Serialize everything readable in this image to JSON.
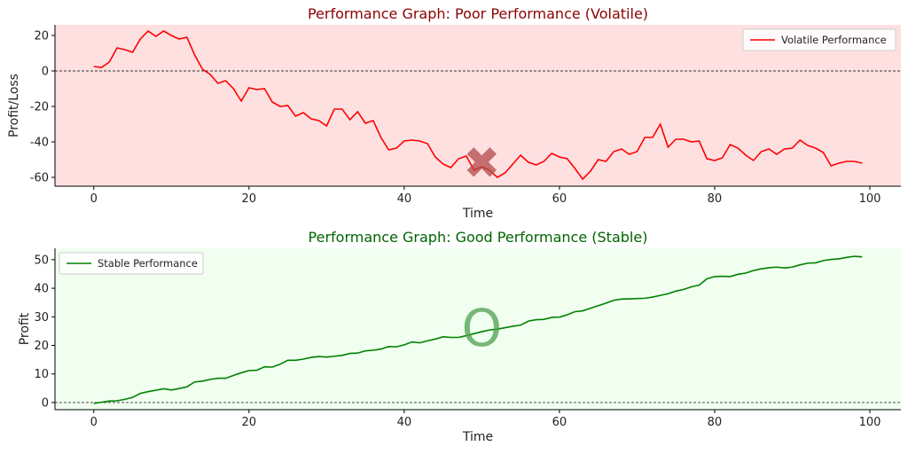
{
  "chart_data": [
    {
      "type": "line",
      "title": "Performance Graph: Poor Performance (Volatile)",
      "title_color": "#8b0000",
      "xlabel": "Time",
      "ylabel": "Profit/Loss",
      "xlim": [
        -5,
        104
      ],
      "ylim": [
        -65,
        26
      ],
      "xticks": [
        0,
        20,
        40,
        60,
        80,
        100
      ],
      "yticks": [
        -60,
        -40,
        -20,
        0,
        20
      ],
      "background": "#ffe0e0",
      "grid": false,
      "legend": "top-right",
      "reference_line": {
        "y": 0,
        "style": "dashed",
        "color": "#333333"
      },
      "marker": {
        "symbol": "✖",
        "x": 50,
        "y": -52,
        "color": "#b24a4a"
      },
      "series": [
        {
          "name": "Volatile Performance",
          "color": "#ff0000",
          "x": [
            0,
            1,
            2,
            3,
            4,
            5,
            6,
            7,
            8,
            9,
            10,
            11,
            12,
            13,
            14,
            15,
            16,
            17,
            18,
            19,
            20,
            21,
            22,
            23,
            24,
            25,
            26,
            27,
            28,
            29,
            30,
            31,
            32,
            33,
            34,
            35,
            36,
            37,
            38,
            39,
            40,
            41,
            42,
            43,
            44,
            45,
            46,
            47,
            48,
            49,
            50,
            51,
            52,
            53,
            54,
            55,
            56,
            57,
            58,
            59,
            60,
            61,
            62,
            63,
            64,
            65,
            66,
            67,
            68,
            69,
            70,
            71,
            72,
            73,
            74,
            75,
            76,
            77,
            78,
            79,
            80,
            81,
            82,
            83,
            84,
            85,
            86,
            87,
            88,
            89,
            90,
            91,
            92,
            93,
            94,
            95,
            96,
            97,
            98,
            99
          ],
          "values": [
            2.5,
            2,
            5,
            13,
            12,
            10.5,
            18,
            22.5,
            19.5,
            22.5,
            20,
            18,
            19,
            9,
            1,
            -2,
            -7,
            -5.5,
            -10,
            -17,
            -9.5,
            -10.5,
            -10,
            -17.5,
            -20,
            -19.5,
            -25.5,
            -23.5,
            -27,
            -28,
            -31,
            -21.5,
            -21.5,
            -27.5,
            -23,
            -29.5,
            -28,
            -37.5,
            -44.5,
            -43.5,
            -39.5,
            -39,
            -39.5,
            -41,
            -48.5,
            -52.5,
            -54.5,
            -49.5,
            -48,
            -56,
            -54,
            -56,
            -60,
            -57.5,
            -52.5,
            -47.5,
            -51.5,
            -53,
            -51,
            -46.5,
            -48.5,
            -49.5,
            -55,
            -61,
            -56.5,
            -50,
            -51,
            -45.5,
            -44,
            -47,
            -45.5,
            -37.5,
            -37.5,
            -30,
            -43,
            -38.5,
            -38.5,
            -40,
            -39.5,
            -49.5,
            -50.5,
            -49,
            -41.5,
            -43.5,
            -47.5,
            -50.5,
            -45.5,
            -44,
            -47,
            -44,
            -43.5,
            -39,
            -42,
            -43.5,
            -46,
            -53.5,
            -52,
            -51,
            -51,
            -52
          ]
        }
      ]
    },
    {
      "type": "line",
      "title": "Performance Graph: Good Performance (Stable)",
      "title_color": "#006400",
      "xlabel": "Time",
      "ylabel": "Profit",
      "xlim": [
        -5,
        104
      ],
      "ylim": [
        -2.5,
        54
      ],
      "xticks": [
        0,
        20,
        40,
        60,
        80,
        100
      ],
      "yticks": [
        0,
        10,
        20,
        30,
        40,
        50
      ],
      "background": "#f0fff0",
      "grid": false,
      "legend": "top-left",
      "reference_line": {
        "y": 0,
        "style": "dashed",
        "color": "#333333"
      },
      "marker": {
        "symbol": "O",
        "x": 50,
        "y": 26,
        "color": "#4f9f4f"
      },
      "series": [
        {
          "name": "Stable Performance",
          "color": "#008000",
          "x": [
            0,
            1,
            2,
            3,
            4,
            5,
            6,
            7,
            8,
            9,
            10,
            11,
            12,
            13,
            14,
            15,
            16,
            17,
            18,
            19,
            20,
            21,
            22,
            23,
            24,
            25,
            26,
            27,
            28,
            29,
            30,
            31,
            32,
            33,
            34,
            35,
            36,
            37,
            38,
            39,
            40,
            41,
            42,
            43,
            44,
            45,
            46,
            47,
            48,
            49,
            50,
            51,
            52,
            53,
            54,
            55,
            56,
            57,
            58,
            59,
            60,
            61,
            62,
            63,
            64,
            65,
            66,
            67,
            68,
            69,
            70,
            71,
            72,
            73,
            74,
            75,
            76,
            77,
            78,
            79,
            80,
            81,
            82,
            83,
            84,
            85,
            86,
            87,
            88,
            89,
            90,
            91,
            92,
            93,
            94,
            95,
            96,
            97,
            98,
            99
          ],
          "values": [
            -0.3,
            0.1,
            0.5,
            0.6,
            1.1,
            1.8,
            3.2,
            3.8,
            4.3,
            4.8,
            4.4,
            4.9,
            5.5,
            7.2,
            7.5,
            8.1,
            8.5,
            8.5,
            9.5,
            10.4,
            11.2,
            11.3,
            12.5,
            12.4,
            13.4,
            14.8,
            14.8,
            15.2,
            15.8,
            16.1,
            15.9,
            16.2,
            16.5,
            17.2,
            17.3,
            18.1,
            18.3,
            18.7,
            19.6,
            19.5,
            20.2,
            21.2,
            20.9,
            21.6,
            22.2,
            23,
            22.8,
            22.8,
            23.4,
            24.1,
            24.8,
            25.4,
            25.7,
            26.2,
            26.7,
            27.1,
            28.5,
            29,
            29.1,
            29.8,
            29.9,
            30.7,
            31.8,
            32.1,
            33,
            33.9,
            34.8,
            35.8,
            36.2,
            36.3,
            36.4,
            36.5,
            36.9,
            37.5,
            38.1,
            39,
            39.6,
            40.5,
            41.1,
            43.3,
            44.1,
            44.2,
            44.1,
            44.9,
            45.3,
            46.2,
            46.8,
            47.2,
            47.4,
            47.1,
            47.4,
            48.2,
            48.8,
            48.9,
            49.7,
            50.1,
            50.3,
            50.8,
            51.2,
            51
          ]
        }
      ]
    }
  ]
}
